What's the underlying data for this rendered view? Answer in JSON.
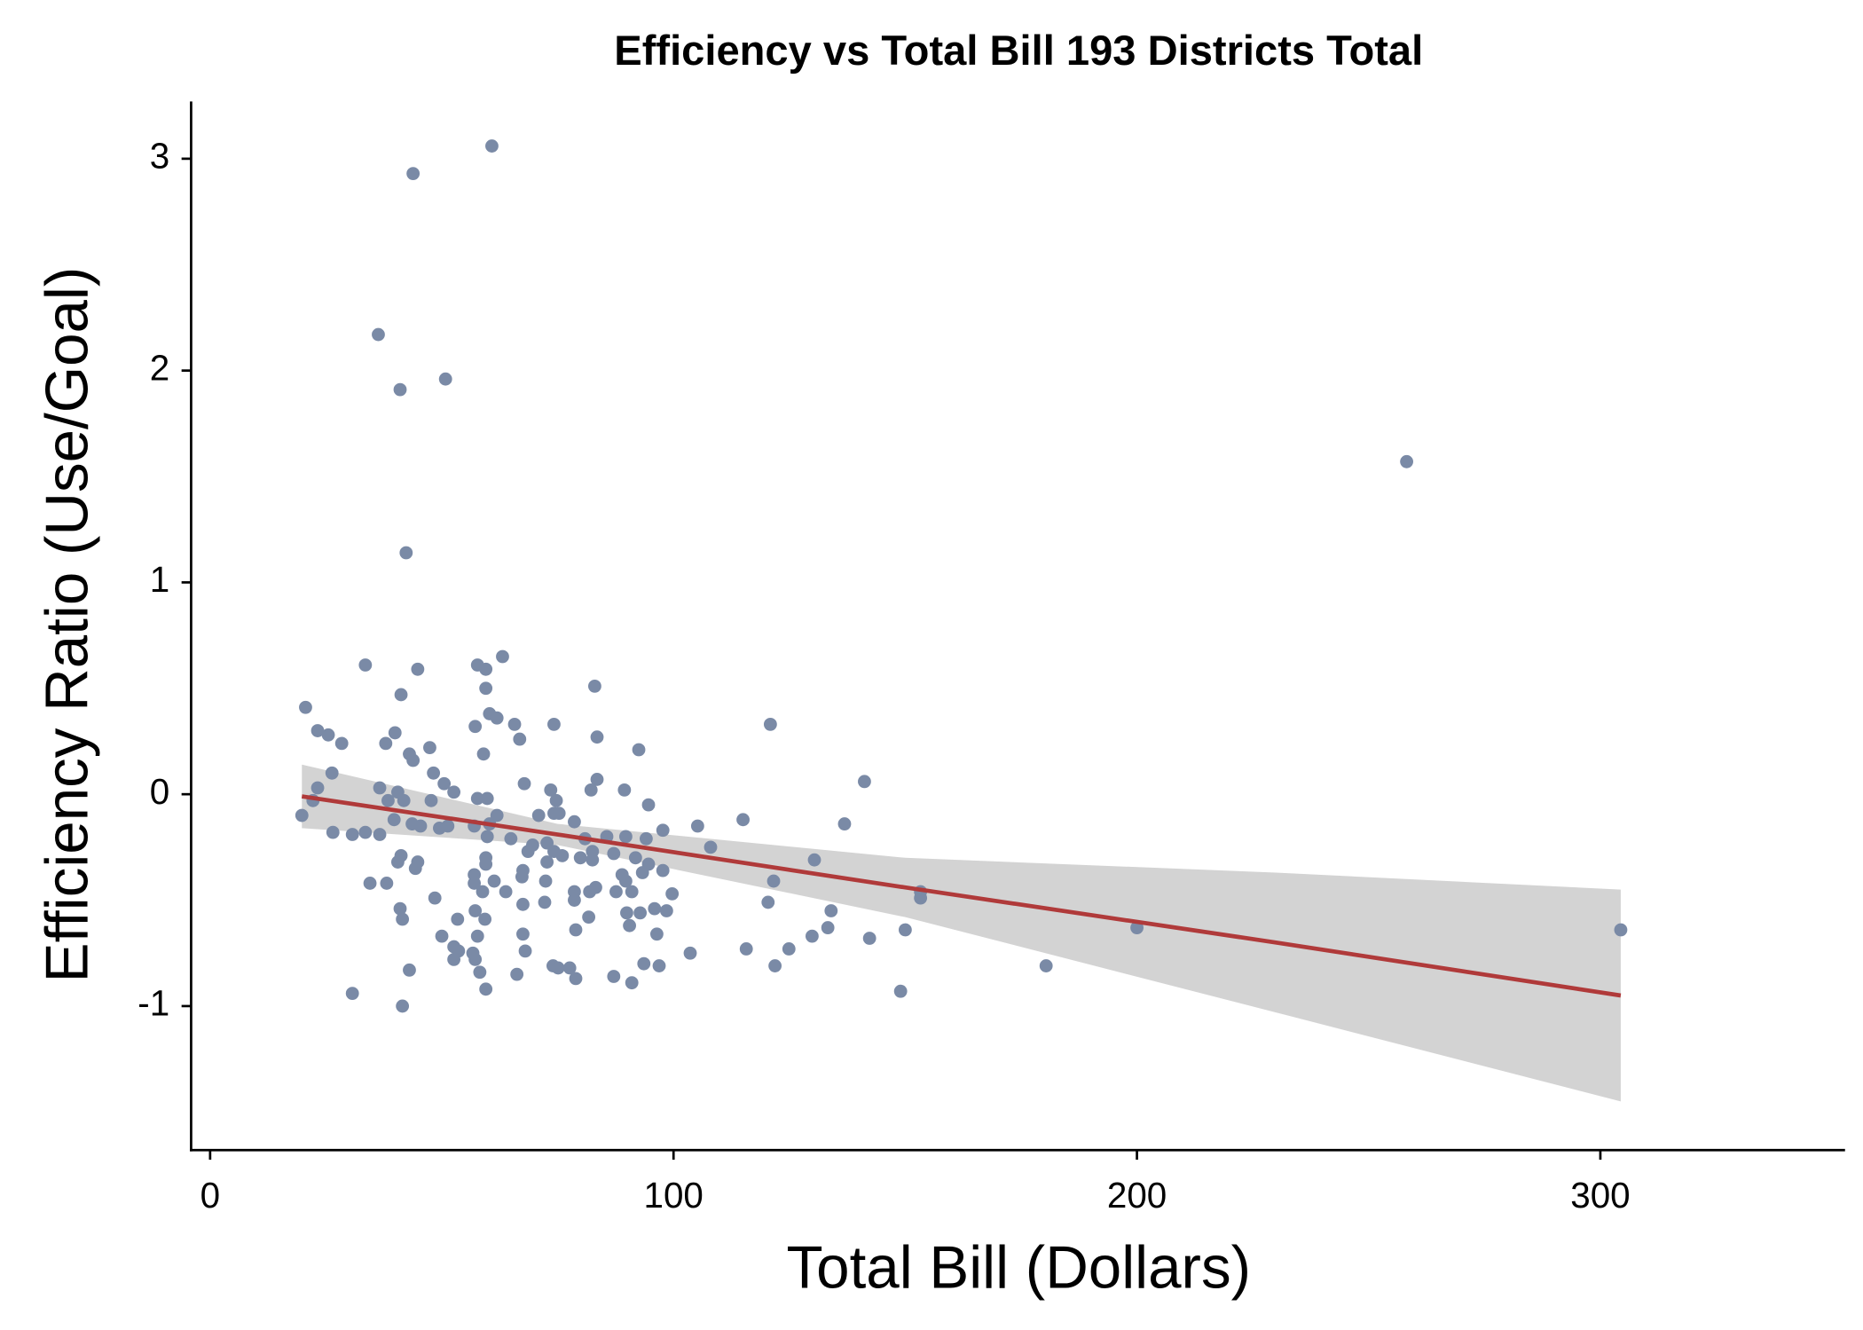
{
  "chart_data": {
    "type": "scatter",
    "title": "Efficiency vs Total Bill 193 Districts Total",
    "x_label": "Total Bill (Dollars)",
    "y_label": "Efficiency Ratio (Use/Goal)",
    "point_color": "#7a8aa6",
    "x": [
      60.8,
      43.8,
      36.3,
      50.8,
      41,
      258.2,
      42.3,
      33.5,
      44.8,
      63.1,
      57.7,
      59.5,
      59.5,
      83,
      20.6,
      41.2,
      60.3,
      61.9,
      65.7,
      74.2,
      120.9,
      23.2,
      25.5,
      39.9,
      57.2,
      83.5,
      28.4,
      37.9,
      66.8,
      47.4,
      92.5,
      43,
      43.8,
      59,
      26.3,
      48.2,
      50.5,
      67.8,
      83.5,
      141.2,
      23.2,
      36.6,
      40.5,
      52.6,
      73.5,
      82.2,
      89.4,
      57.7,
      59.8,
      22.2,
      38.4,
      41.8,
      47.7,
      74.7,
      94.6,
      19.8,
      61.9,
      70.9,
      74.2,
      75.3,
      115,
      136.9,
      39.7,
      43.6,
      45.4,
      49.5,
      51.3,
      57,
      60.3,
      78.6,
      97.7,
      105.2,
      26.5,
      30.7,
      33.5,
      36.6,
      59.8,
      64.9,
      69.6,
      72.7,
      80.9,
      85.6,
      89.7,
      94.1,
      108,
      68.6,
      74.2,
      76,
      82.5,
      87.1,
      41.2,
      59.5,
      72.7,
      79.9,
      82.5,
      91.8,
      130.4,
      40.5,
      44.8,
      44.3,
      59.5,
      94.6,
      93.3,
      88.9,
      97.7,
      57,
      67.5,
      67.3,
      89.7,
      121.6,
      34.5,
      38.1,
      57,
      61.3,
      63.8,
      72.4,
      81.9,
      83.2,
      87.6,
      91,
      58.8,
      78.6,
      99.7,
      153.3,
      153.3,
      48.5,
      78.6,
      72.2,
      67.5,
      120.4,
      41,
      57.2,
      89.9,
      92.8,
      95.9,
      98.5,
      134,
      41.5,
      53.4,
      59.3,
      81.7,
      90.5,
      133.3,
      96.4,
      78.9,
      150,
      200,
      304.4,
      50,
      57.7,
      67.5,
      129.9,
      142.3,
      52.6,
      53.6,
      56.7,
      68,
      115.7,
      124.9,
      103.6,
      52.6,
      57.2,
      74,
      75.1,
      77.6,
      93.6,
      96.9,
      121.9,
      180.4,
      43,
      58.2,
      66.2,
      87.1,
      78.9,
      91,
      59.5,
      149,
      30.7,
      41.5
    ],
    "values": [
      3.06,
      2.93,
      2.17,
      1.96,
      1.91,
      1.57,
      1.14,
      0.61,
      0.59,
      0.65,
      0.61,
      0.59,
      0.5,
      0.51,
      0.41,
      0.47,
      0.38,
      0.36,
      0.33,
      0.33,
      0.33,
      0.3,
      0.28,
      0.29,
      0.32,
      0.27,
      0.24,
      0.24,
      0.26,
      0.22,
      0.21,
      0.19,
      0.16,
      0.19,
      0.1,
      0.1,
      0.05,
      0.05,
      0.07,
      0.06,
      0.03,
      0.03,
      0.01,
      0.01,
      0.02,
      0.02,
      0.02,
      -0.02,
      -0.02,
      -0.03,
      -0.03,
      -0.03,
      -0.03,
      -0.03,
      -0.05,
      -0.1,
      -0.1,
      -0.1,
      -0.09,
      -0.09,
      -0.12,
      -0.14,
      -0.12,
      -0.14,
      -0.15,
      -0.16,
      -0.15,
      -0.15,
      -0.14,
      -0.13,
      -0.17,
      -0.15,
      -0.18,
      -0.19,
      -0.18,
      -0.19,
      -0.2,
      -0.21,
      -0.24,
      -0.23,
      -0.21,
      -0.2,
      -0.2,
      -0.21,
      -0.25,
      -0.27,
      -0.27,
      -0.29,
      -0.27,
      -0.28,
      -0.29,
      -0.3,
      -0.32,
      -0.3,
      -0.31,
      -0.3,
      -0.31,
      -0.32,
      -0.32,
      -0.35,
      -0.33,
      -0.33,
      -0.37,
      -0.38,
      -0.36,
      -0.38,
      -0.36,
      -0.39,
      -0.41,
      -0.41,
      -0.42,
      -0.42,
      -0.42,
      -0.41,
      -0.46,
      -0.41,
      -0.46,
      -0.44,
      -0.46,
      -0.46,
      -0.46,
      -0.46,
      -0.47,
      -0.46,
      -0.49,
      -0.49,
      -0.5,
      -0.51,
      -0.52,
      -0.51,
      -0.54,
      -0.55,
      -0.56,
      -0.56,
      -0.54,
      -0.55,
      -0.55,
      -0.59,
      -0.59,
      -0.59,
      -0.58,
      -0.62,
      -0.63,
      -0.66,
      -0.64,
      -0.64,
      -0.63,
      -0.64,
      -0.67,
      -0.67,
      -0.66,
      -0.67,
      -0.68,
      -0.72,
      -0.74,
      -0.75,
      -0.74,
      -0.73,
      -0.73,
      -0.75,
      -0.78,
      -0.78,
      -0.81,
      -0.82,
      -0.82,
      -0.8,
      -0.81,
      -0.81,
      -0.81,
      -0.83,
      -0.84,
      -0.85,
      -0.86,
      -0.87,
      -0.89,
      -0.92,
      -0.93,
      -0.94,
      -1.0
    ],
    "fit": {
      "color": "#b03a3a",
      "band_color": "#d3d3d3",
      "x": [
        19.8,
        75,
        150,
        230,
        304.4
      ],
      "y": [
        -0.01,
        -0.19,
        -0.44,
        -0.7,
        -0.95
      ],
      "lower": [
        -0.16,
        -0.24,
        -0.58,
        -1.03,
        -1.45
      ],
      "upper": [
        0.14,
        -0.14,
        -0.3,
        -0.37,
        -0.45
      ]
    },
    "xlim": [
      -4.1,
      352.8
    ],
    "xticks": [
      0,
      100,
      200,
      300
    ],
    "ylim": [
      -1.68,
      3.27
    ],
    "yticks": [
      -1,
      0,
      1,
      2,
      3
    ]
  }
}
